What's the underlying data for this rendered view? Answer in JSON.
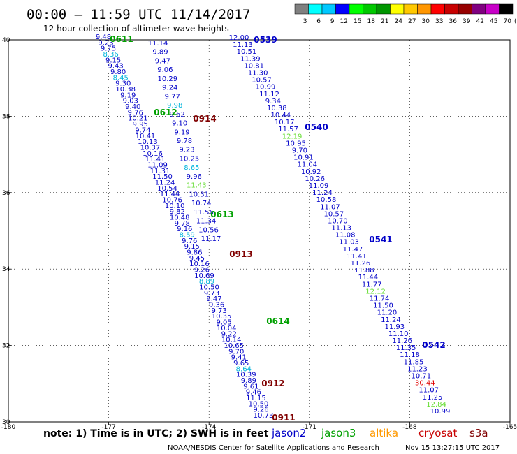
{
  "title": "00:00 – 11:59 UTC 11/14/2017",
  "subtitle": "12 hour collection of altimeter wave heights",
  "legend_bar": {
    "unit": "(ft)",
    "bins": [
      {
        "label": "3",
        "color": "#808080"
      },
      {
        "label": "6",
        "color": "#00ffff"
      },
      {
        "label": "9",
        "color": "#00c8ff"
      },
      {
        "label": "12",
        "color": "#0000ff"
      },
      {
        "label": "15",
        "color": "#00ff00"
      },
      {
        "label": "18",
        "color": "#00c800"
      },
      {
        "label": "21",
        "color": "#009600"
      },
      {
        "label": "24",
        "color": "#ffff00"
      },
      {
        "label": "27",
        "color": "#ffc800"
      },
      {
        "label": "30",
        "color": "#ff9600"
      },
      {
        "label": "33",
        "color": "#ff0000"
      },
      {
        "label": "36",
        "color": "#c80000"
      },
      {
        "label": "39",
        "color": "#960000"
      },
      {
        "label": "42",
        "color": "#800080"
      },
      {
        "label": "45",
        "color": "#c800c8"
      },
      {
        "label": "70",
        "color": "#000000"
      }
    ]
  },
  "footer": {
    "note": "note: 1) Time is in UTC; 2) SWH is in feet",
    "satellites": [
      {
        "name": "jason2",
        "color": "#0000c8"
      },
      {
        "name": "jason3",
        "color": "#00a000"
      },
      {
        "name": "altika",
        "color": "#ff9900"
      },
      {
        "name": "cryosat",
        "color": "#c80000"
      },
      {
        "name": "s3a",
        "color": "#800000"
      }
    ],
    "credit": "NOAA/NESDIS Center for Satellite Applications and Research",
    "generated": "Nov 15 13:27:15 UTC 2017"
  },
  "chart_data": {
    "type": "scatter",
    "xlim": [
      -180,
      -165
    ],
    "ylim": [
      30,
      40
    ],
    "x_ticks": [
      "-180",
      "-177",
      "-174",
      "-171",
      "-168",
      "-165"
    ],
    "y_ticks": [
      "30",
      "32",
      "34",
      "36",
      "38",
      "40"
    ],
    "grid": "dotted",
    "colors": {
      "blue": "#0000c8",
      "cyan": "#00b4dc",
      "green": "#00c800",
      "lightgreen": "#66dd33",
      "red": "#e00000"
    },
    "passes": [
      {
        "name": "jason2",
        "color": "#0000c8",
        "values": [
          "9.48",
          "9.23",
          "9.75",
          "8.36",
          "9.15",
          "9.43",
          "9.80",
          "8.45",
          "9.30",
          "10.38",
          "9.19",
          "9.03",
          "9.40",
          "9.76",
          "10.21",
          "9.95",
          "9.74",
          "10.41",
          "10.13",
          "10.37",
          "10.16",
          "11.41",
          "11.09",
          "11.31",
          "11.50",
          "11.24",
          "10.54",
          "11.44",
          "10.76",
          "10.10",
          "9.82",
          "10.48",
          "9.78",
          "9.16",
          "8.59",
          "9.76",
          "9.15",
          "9.86",
          "9.45",
          "10.16",
          "9.26",
          "10.69",
          "8.89",
          "10.50",
          "9.73",
          "9.47",
          "9.36",
          "9.73",
          "10.35",
          "9.05",
          "10.04",
          "9.22",
          "10.14",
          "10.65",
          "9.70",
          "9.41",
          "9.65",
          "8.64",
          "10.39",
          "9.89",
          "9.61",
          "9.46",
          "11.15",
          "10.50",
          "9.26",
          "10.73"
        ]
      },
      {
        "name": "jason3",
        "color": "#0000c8",
        "values": [
          "11.14",
          "9.89",
          "9.47",
          "9.06",
          "10.29",
          "9.24",
          "9.77",
          "9.98",
          "9.62",
          "9.10",
          "9.19",
          "9.78",
          "9.23",
          "10.25",
          "8.65",
          "9.96",
          "11.43",
          "10.31",
          "10.74",
          "11.56",
          "11.34",
          "10.56",
          "11.17"
        ]
      },
      {
        "name": "jason2-east",
        "color": "#0000c8",
        "values": [
          "12.00",
          "11.13",
          "10.51",
          "11.39",
          "10.81",
          "11.30",
          "10.57",
          "10.99",
          "11.12",
          "9.34",
          "10.38",
          "10.44",
          "10.17",
          "11.57",
          "12.19",
          "10.95",
          "9.70",
          "10.91",
          "11.04",
          "10.92",
          "10.26",
          "11.09",
          "11.24",
          "10.58",
          "11.07",
          "10.57",
          "10.70",
          "11.13",
          "11.08",
          "11.03",
          "11.47",
          "11.41",
          "11.26",
          "11.88",
          "11.44",
          "11.77",
          "12.12",
          "11.74",
          "11.50",
          "11.20",
          "11.24",
          "11.93",
          "11.10",
          "11.26",
          "11.35",
          "11.18",
          "11.85",
          "11.23",
          "10.71",
          "30.44",
          "11.07",
          "11.25",
          "12.84",
          "10.99"
        ]
      }
    ],
    "pass_labels": [
      {
        "text": "0611",
        "color": "#00a000"
      },
      {
        "text": "0612",
        "color": "#00a000"
      },
      {
        "text": "0613",
        "color": "#00a000"
      },
      {
        "text": "0614",
        "color": "#00a000"
      },
      {
        "text": "0914",
        "color": "#800000"
      },
      {
        "text": "0913",
        "color": "#800000"
      },
      {
        "text": "0912",
        "color": "#800000"
      },
      {
        "text": "0911",
        "color": "#800000"
      },
      {
        "text": "0539",
        "color": "#0000c8"
      },
      {
        "text": "0540",
        "color": "#0000c8"
      },
      {
        "text": "0541",
        "color": "#0000c8"
      },
      {
        "text": "0542",
        "color": "#0000c8"
      }
    ]
  }
}
